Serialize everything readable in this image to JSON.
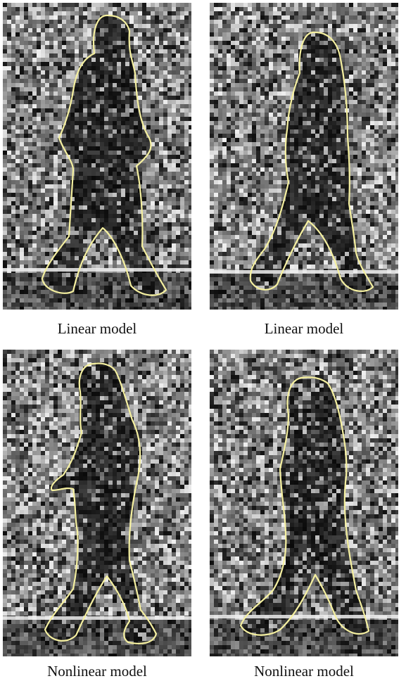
{
  "panels": [
    {
      "caption": "Linear model"
    },
    {
      "caption": "Linear model"
    },
    {
      "caption": "Nonlinear model"
    },
    {
      "caption": "Nonlinear model"
    }
  ],
  "colors": {
    "contour": "#f5f0a0",
    "background": "#ffffff",
    "noise_dark": "#151515",
    "noise_light": "#d8d8d8",
    "ground_stripe": "#f0f0f0"
  }
}
